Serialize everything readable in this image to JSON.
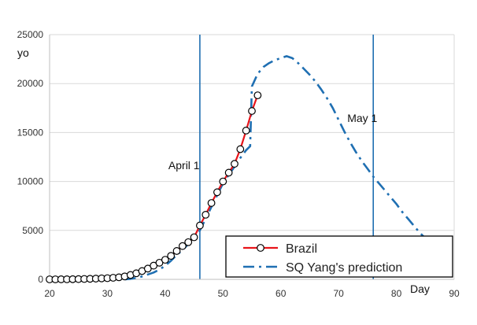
{
  "chart_data": {
    "type": "line",
    "title": "",
    "xlabel": "Day",
    "ylabel": "yo",
    "xlim": [
      20,
      90
    ],
    "ylim": [
      0,
      25000
    ],
    "x_ticks": [
      20,
      30,
      40,
      50,
      60,
      70,
      80,
      90
    ],
    "y_ticks": [
      0,
      5000,
      10000,
      15000,
      20000,
      25000
    ],
    "x_tick_labels": [
      "20",
      "30",
      "40",
      "50",
      "60",
      "70",
      "80",
      "90"
    ],
    "y_tick_labels": [
      "0",
      "5000",
      "10000",
      "15000",
      "20000",
      "25000"
    ],
    "grid": "horizontal",
    "legend_position": "bottom-right",
    "series": [
      {
        "name": "Brazil",
        "style": "solid line with circle markers",
        "color": "#e8141a",
        "marker_color": "#000000",
        "x": [
          20,
          21,
          22,
          23,
          24,
          25,
          26,
          27,
          28,
          29,
          30,
          31,
          32,
          33,
          34,
          35,
          36,
          37,
          38,
          39,
          40,
          41,
          42,
          43,
          44,
          45,
          46,
          47,
          48,
          49,
          50,
          51,
          52,
          53,
          54,
          55,
          56
        ],
        "y": [
          0,
          2,
          4,
          8,
          15,
          25,
          40,
          55,
          75,
          100,
          120,
          160,
          210,
          300,
          450,
          620,
          850,
          1100,
          1400,
          1700,
          2000,
          2400,
          2900,
          3400,
          3800,
          4300,
          5500,
          6600,
          7800,
          8900,
          10000,
          10900,
          11800,
          13300,
          15200,
          17200,
          18800
        ]
      },
      {
        "name": "SQ Yang's prediction",
        "style": "dash-dot",
        "color": "#1f6fb2",
        "x": [
          33,
          34,
          35,
          36,
          37,
          38,
          39,
          40,
          41,
          42,
          43,
          44,
          45,
          46,
          47,
          48,
          49,
          50,
          51,
          52,
          53,
          54,
          54.7,
          55,
          56,
          57,
          58,
          59,
          60,
          61,
          62,
          63,
          64,
          65,
          66,
          67,
          68,
          69,
          70,
          71,
          72,
          73,
          74,
          75,
          76,
          77,
          78,
          79,
          80,
          81,
          82,
          83,
          84,
          85,
          86,
          87,
          88,
          89,
          90
        ],
        "y": [
          0,
          50,
          150,
          300,
          500,
          700,
          1000,
          1400,
          1900,
          2500,
          3000,
          3600,
          4200,
          5000,
          6200,
          7400,
          8600,
          9800,
          10700,
          11500,
          12400,
          13200,
          13600,
          19700,
          21000,
          21700,
          22100,
          22400,
          22600,
          22800,
          22600,
          22100,
          21500,
          20900,
          20200,
          19400,
          18500,
          17500,
          16300,
          15100,
          14000,
          13000,
          12100,
          11300,
          10500,
          9800,
          9100,
          8400,
          7700,
          6900,
          6200,
          5500,
          4800,
          4200,
          3900,
          3700,
          3500,
          3300,
          3000
        ]
      }
    ],
    "annotations": [
      {
        "text": "April 1",
        "x": 46,
        "kind": "vertical-line",
        "color": "#1f6fb2"
      },
      {
        "text": "May 1",
        "x": 76,
        "kind": "vertical-line",
        "color": "#1f6fb2"
      }
    ]
  }
}
